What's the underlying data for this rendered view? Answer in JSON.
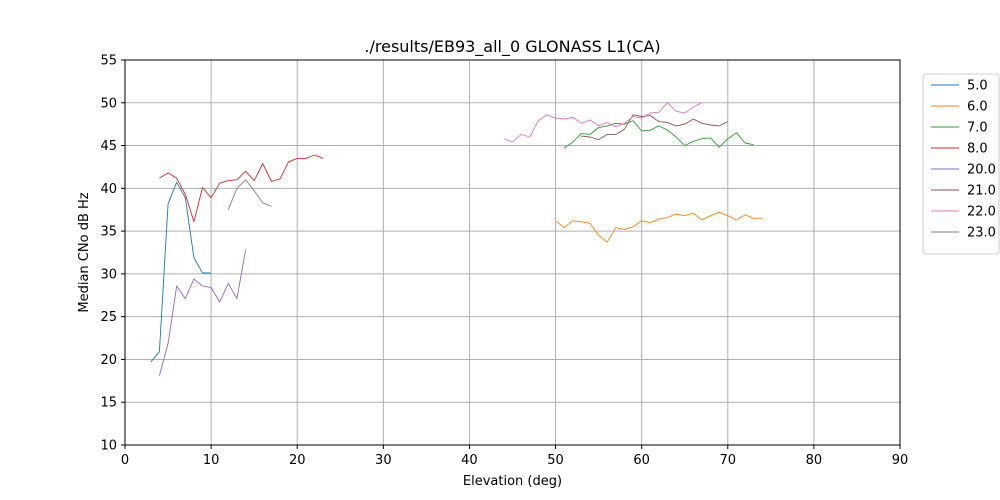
{
  "chart_data": {
    "type": "line",
    "title": "./results/EB93_all_0 GLONASS L1(CA)",
    "xlabel": "Elevation (deg)",
    "ylabel": "Median CNo dB Hz",
    "xlim": [
      0,
      90
    ],
    "ylim": [
      10,
      55
    ],
    "xticks": [
      0,
      10,
      20,
      30,
      40,
      50,
      60,
      70,
      80,
      90
    ],
    "yticks": [
      10,
      15,
      20,
      25,
      30,
      35,
      40,
      45,
      50,
      55
    ],
    "grid": true,
    "legend_position": "outside-right-top",
    "series": [
      {
        "name": "5.0",
        "color": "#1f77b4",
        "x": [
          3,
          4,
          5,
          6,
          7,
          8,
          9,
          10
        ],
        "y": [
          19.7,
          20.9,
          38.2,
          40.7,
          38.9,
          31.9,
          30.1,
          30.1
        ]
      },
      {
        "name": "6.0",
        "color": "#ff7f0e",
        "x": [
          50,
          51,
          52,
          53,
          54,
          55,
          56,
          57,
          58,
          59,
          60,
          61,
          62,
          63,
          64,
          65,
          66,
          67,
          68,
          69,
          70,
          71,
          72,
          73,
          74
        ],
        "y": [
          36.2,
          35.4,
          36.2,
          36.1,
          35.9,
          34.5,
          33.7,
          35.4,
          35.2,
          35.5,
          36.2,
          36.0,
          36.4,
          36.6,
          37.0,
          36.8,
          37.1,
          36.3,
          36.8,
          37.2,
          36.8,
          36.3,
          36.9,
          36.5,
          36.5
        ]
      },
      {
        "name": "7.0",
        "color": "#2ca02c",
        "x": [
          51,
          52,
          53,
          54,
          55,
          56,
          57,
          58,
          59,
          60,
          61,
          62,
          63,
          64,
          65,
          66,
          67,
          68,
          69,
          70,
          71,
          72,
          73
        ],
        "y": [
          44.7,
          45.4,
          46.4,
          46.3,
          47.1,
          47.3,
          47.6,
          47.5,
          47.9,
          46.7,
          46.8,
          47.3,
          46.8,
          46.0,
          45.0,
          45.5,
          45.8,
          45.9,
          44.8,
          45.8,
          46.5,
          45.3,
          45.1
        ]
      },
      {
        "name": "8.0",
        "color": "#d62728",
        "x": [
          4,
          5,
          6,
          7,
          8,
          9,
          10,
          11,
          12,
          13,
          14,
          15,
          16,
          17,
          18,
          19,
          20,
          21,
          22,
          23
        ],
        "y": [
          41.2,
          41.8,
          41.2,
          39.3,
          36.1,
          40.1,
          38.9,
          40.6,
          40.9,
          41.0,
          42.0,
          40.9,
          42.9,
          40.8,
          41.1,
          43.1,
          43.5,
          43.5,
          43.9,
          43.5
        ]
      },
      {
        "name": "20.0",
        "color": "#9467bd",
        "x": [
          4,
          5,
          6,
          7,
          8,
          9,
          10,
          11,
          12,
          13,
          14
        ],
        "y": [
          18.1,
          21.9,
          28.6,
          27.1,
          29.4,
          28.6,
          28.4,
          26.7,
          28.9,
          27.1,
          32.8
        ]
      },
      {
        "name": "21.0",
        "color": "#8c564b",
        "x": [
          53,
          54,
          55,
          56,
          57,
          58,
          59,
          60,
          61,
          62,
          63,
          64,
          65,
          66,
          67,
          68,
          69,
          70
        ],
        "y": [
          46.1,
          46.0,
          45.7,
          46.3,
          46.3,
          46.9,
          48.6,
          48.4,
          48.5,
          47.8,
          47.7,
          47.3,
          47.5,
          48.1,
          47.6,
          47.4,
          47.3,
          47.8
        ]
      },
      {
        "name": "22.0",
        "color": "#e377c2",
        "x": [
          44,
          45,
          46,
          47,
          48,
          49,
          50,
          51,
          52,
          53,
          54,
          55,
          56,
          57,
          58,
          59,
          60,
          61,
          62,
          63,
          64,
          65,
          66,
          67
        ],
        "y": [
          45.8,
          45.4,
          46.3,
          46.0,
          47.9,
          48.6,
          48.2,
          48.1,
          48.3,
          47.6,
          48.0,
          47.3,
          47.7,
          47.2,
          47.6,
          48.4,
          48.2,
          48.8,
          48.9,
          50.0,
          49.0,
          48.8,
          49.5,
          50.0
        ]
      },
      {
        "name": "23.0",
        "color": "#7f7f7f",
        "x": [
          12,
          13,
          14,
          15,
          16,
          17
        ],
        "y": [
          37.5,
          40.0,
          41.0,
          39.7,
          38.3,
          37.9
        ]
      }
    ]
  }
}
